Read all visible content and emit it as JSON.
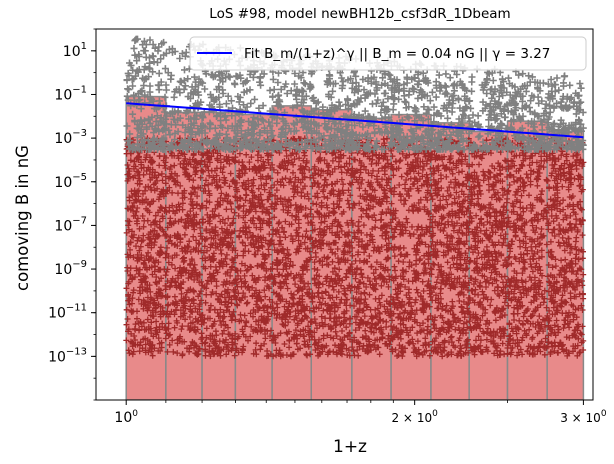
{
  "chart_data": {
    "type": "scatter",
    "title": "LoS #98, model newBH12b_csf3dR_1Dbeam",
    "xlabel": "1+z",
    "ylabel": "comoving B in nG",
    "x_scale": "log",
    "y_scale": "log",
    "xlim": [
      0.93,
      3.07
    ],
    "ylim": [
      1e-15,
      100.0
    ],
    "x_ticks": [
      {
        "value": 1,
        "base": "10",
        "exp": "0",
        "mantissa": ""
      },
      {
        "value": 2,
        "base": "10",
        "exp": "0",
        "mantissa": "2 × "
      },
      {
        "value": 3,
        "base": "10",
        "exp": "0",
        "mantissa": "3 × "
      }
    ],
    "y_ticks": [
      {
        "value": 10,
        "base": "10",
        "exp": "1"
      },
      {
        "value": 0.1,
        "base": "10",
        "exp": "−1"
      },
      {
        "value": 0.001,
        "base": "10",
        "exp": "−3"
      },
      {
        "value": 1e-05,
        "base": "10",
        "exp": "−5"
      },
      {
        "value": 1e-07,
        "base": "10",
        "exp": "−7"
      },
      {
        "value": 1e-09,
        "base": "10",
        "exp": "−9"
      },
      {
        "value": 1e-11,
        "base": "10",
        "exp": "−11"
      },
      {
        "value": 1e-13,
        "base": "10",
        "exp": "−13"
      }
    ],
    "legend": {
      "placement": "top-right",
      "label": "Fit B_m/(1+z)^γ || B_m = 0.04 nG || γ = 3.27"
    },
    "fit": {
      "Bm": 0.04,
      "gamma": 3.27,
      "color": "#0000ff"
    },
    "bars": {
      "color": "#e88a8a",
      "edge_color": "#888888",
      "bottom": 1e-15,
      "bins": [
        {
          "x0": 1.0,
          "x1": 1.1,
          "value": 0.08
        },
        {
          "x0": 1.1,
          "x1": 1.2,
          "value": 0.015
        },
        {
          "x0": 1.2,
          "x1": 1.3,
          "value": 0.015
        },
        {
          "x0": 1.3,
          "x1": 1.42,
          "value": 0.012
        },
        {
          "x0": 1.42,
          "x1": 1.56,
          "value": 0.03
        },
        {
          "x0": 1.56,
          "x1": 1.72,
          "value": 0.02
        },
        {
          "x0": 1.72,
          "x1": 1.89,
          "value": 0.008
        },
        {
          "x0": 1.89,
          "x1": 2.08,
          "value": 0.012
        },
        {
          "x0": 2.08,
          "x1": 2.28,
          "value": 0.005
        },
        {
          "x0": 2.28,
          "x1": 2.5,
          "value": 0.002
        },
        {
          "x0": 2.5,
          "x1": 2.75,
          "value": 0.006
        },
        {
          "x0": 2.75,
          "x1": 3.0,
          "value": 0.002
        }
      ]
    },
    "scatter_dark": {
      "color": "#a02a2a",
      "ymin": 1e-13,
      "ymax": 0.001
    },
    "scatter_grey": {
      "color": "#808080",
      "ymin": 0.0003,
      "ymax": 40
    }
  }
}
